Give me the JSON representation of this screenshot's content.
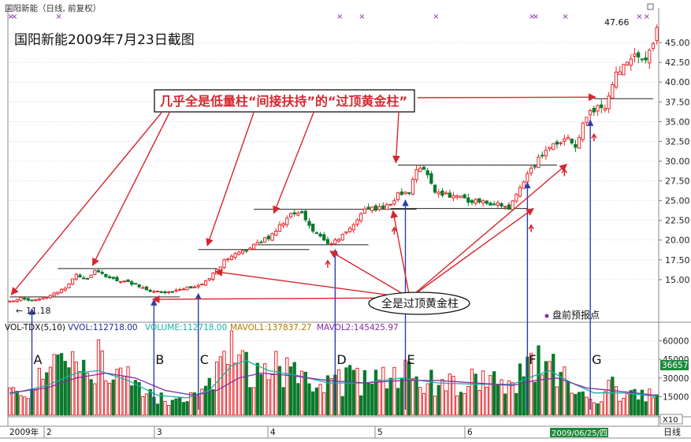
{
  "header": {
    "stock_title": "国阳新能（日线, 前复权）",
    "screenshot_caption": "国阳新能2009年7月23日截图"
  },
  "annotations": {
    "callout_top": "几乎全是低量柱“间接扶持”的“过顶黄金柱”",
    "callout_bottom": "全是过顶黄金柱",
    "legend_dot_label": "盘前预报点",
    "high_label": "47.66",
    "low_label": "11.18",
    "low_arrow": "←",
    "point_letters": [
      "A",
      "B",
      "C",
      "D",
      "E",
      "F",
      "G"
    ]
  },
  "volume_header": {
    "indicator": "VOL-TDX(5,10)",
    "vvol": "VVOL:112718.00",
    "volume": "VOLUME:112718.00",
    "mavol1": "MAVOL1:137837.27",
    "mavol2": "MAVOL2:145425.97",
    "current_badge": "36657",
    "scale_badge": "X10"
  },
  "bottom_bar": {
    "year_label": "2009年",
    "month_ticks": [
      "2",
      "3",
      "4",
      "5",
      "6"
    ],
    "date_badge": "2009/06/25/四",
    "period_label": "日线"
  },
  "colors": {
    "up": "#e8262a",
    "down": "#0b7a2c",
    "ma1": "#19b3a4",
    "ma2": "#8a2aa6",
    "arrow": "#d6262e",
    "blue_line": "#2a3fa8"
  },
  "chart_data": [
    {
      "type": "candlestick",
      "title": "国阳新能（日线, 前复权）",
      "y_ticks": [
        15.0,
        17.5,
        20.0,
        22.5,
        25.0,
        27.5,
        30.0,
        32.5,
        35.0,
        37.5,
        40.0,
        42.5,
        45.0
      ],
      "y_tick_labels": [
        "15.00",
        "17.50",
        "20.00",
        "22.50",
        "25.00",
        "27.50",
        "30.00",
        "32.50",
        "35.00",
        "37.50",
        "40.00",
        "42.50",
        "45.00"
      ],
      "ylim": [
        10.3,
        49.0
      ],
      "x_labels": [
        "2009年",
        "2",
        "3",
        "4",
        "5",
        "6"
      ],
      "close_path": [
        [
          0,
          12.2
        ],
        [
          3,
          12.8
        ],
        [
          6,
          12.3
        ],
        [
          9,
          12.8
        ],
        [
          12,
          13.2
        ],
        [
          15,
          14.0
        ],
        [
          18,
          15.6
        ],
        [
          21,
          15.2
        ],
        [
          23,
          16.0
        ],
        [
          26,
          15.4
        ],
        [
          29,
          14.9
        ],
        [
          32,
          14.8
        ],
        [
          34,
          14.3
        ],
        [
          37,
          13.6
        ],
        [
          40,
          13.4
        ],
        [
          43,
          13.3
        ],
        [
          46,
          13.9
        ],
        [
          49,
          14.1
        ],
        [
          52,
          14.3
        ],
        [
          54,
          15.0
        ],
        [
          56,
          16.3
        ],
        [
          58,
          17.3
        ],
        [
          61,
          18.1
        ],
        [
          64,
          18.8
        ],
        [
          67,
          19.6
        ],
        [
          70,
          20.4
        ],
        [
          73,
          21.8
        ],
        [
          76,
          23.2
        ],
        [
          79,
          23.3
        ],
        [
          81,
          21.8
        ],
        [
          84,
          20.4
        ],
        [
          87,
          19.4
        ],
        [
          90,
          20.6
        ],
        [
          93,
          22.0
        ],
        [
          96,
          24.0
        ],
        [
          99,
          24.0
        ],
        [
          102,
          24.2
        ],
        [
          105,
          25.8
        ],
        [
          108,
          26.2
        ],
        [
          110,
          28.6
        ],
        [
          112,
          29.2
        ],
        [
          115,
          26.2
        ],
        [
          118,
          25.8
        ],
        [
          121,
          25.6
        ],
        [
          124,
          25.0
        ],
        [
          127,
          25.0
        ],
        [
          130,
          24.7
        ],
        [
          133,
          24.4
        ],
        [
          135,
          24.0
        ],
        [
          137,
          25.6
        ],
        [
          139,
          27.6
        ],
        [
          141,
          29.0
        ],
        [
          143,
          30.2
        ],
        [
          145,
          31.6
        ],
        [
          148,
          32.2
        ],
        [
          151,
          32.6
        ],
        [
          153,
          32.0
        ],
        [
          155,
          34.4
        ],
        [
          157,
          36.2
        ],
        [
          159,
          37.0
        ],
        [
          161,
          36.6
        ],
        [
          163,
          40.0
        ],
        [
          166,
          42.6
        ],
        [
          169,
          43.6
        ],
        [
          171,
          42.4
        ],
        [
          173,
          44.2
        ],
        [
          175,
          46.4
        ]
      ],
      "high": 47.66,
      "low": 11.18,
      "support_levels": [
        {
          "from": 0,
          "to": 46,
          "price": 12.8
        },
        {
          "from": 13,
          "to": 56,
          "price": 16.4
        },
        {
          "from": 51,
          "to": 81,
          "price": 18.8
        },
        {
          "from": 67,
          "to": 97,
          "price": 19.4
        },
        {
          "from": 66,
          "to": 110,
          "price": 23.9
        },
        {
          "from": 103,
          "to": 140,
          "price": 24.0
        },
        {
          "from": 105,
          "to": 148,
          "price": 29.5
        },
        {
          "from": 158,
          "to": 174,
          "price": 37.9
        }
      ],
      "point_bars": {
        "A": 6,
        "B": 39,
        "C": 51,
        "D": 88,
        "E": 107,
        "F": 140,
        "G": 157
      },
      "premarket_marks": [
        0,
        1,
        13,
        89,
        95,
        115,
        141,
        142,
        150,
        170,
        172
      ]
    },
    {
      "type": "bar",
      "title": "VOL-TDX(5,10)",
      "y_ticks": [
        15000,
        30000,
        45000,
        60000
      ],
      "y_tick_labels": [
        "15000",
        "30000",
        "45000",
        "60000"
      ],
      "ylim": [
        0,
        68000
      ],
      "series": [
        {
          "name": "VOLUME",
          "values_path": [
            [
              0,
              18000
            ],
            [
              6,
              24000
            ],
            [
              12,
              34000
            ],
            [
              18,
              44000
            ],
            [
              22,
              48000
            ],
            [
              26,
              38000
            ],
            [
              30,
              30000
            ],
            [
              34,
              26000
            ],
            [
              38,
              18000
            ],
            [
              42,
              14000
            ],
            [
              46,
              12000
            ],
            [
              50,
              14000
            ],
            [
              54,
              22000
            ],
            [
              57,
              38000
            ],
            [
              59,
              52000
            ],
            [
              61,
              64000
            ],
            [
              64,
              42000
            ],
            [
              68,
              30000
            ],
            [
              72,
              40000
            ],
            [
              76,
              36000
            ],
            [
              80,
              24000
            ],
            [
              84,
              22000
            ],
            [
              88,
              26000
            ],
            [
              92,
              28000
            ],
            [
              96,
              26000
            ],
            [
              100,
              30000
            ],
            [
              104,
              34000
            ],
            [
              108,
              32000
            ],
            [
              112,
              28000
            ],
            [
              116,
              26000
            ],
            [
              120,
              22000
            ],
            [
              124,
              28000
            ],
            [
              128,
              26000
            ],
            [
              132,
              28000
            ],
            [
              136,
              24000
            ],
            [
              140,
              40000
            ],
            [
              143,
              50000
            ],
            [
              146,
              38000
            ],
            [
              150,
              30000
            ],
            [
              154,
              20000
            ],
            [
              158,
              10000
            ],
            [
              162,
              24000
            ],
            [
              166,
              18000
            ],
            [
              170,
              14000
            ],
            [
              175,
              15000
            ]
          ]
        },
        {
          "name": "MAVOL1",
          "values_path": [
            [
              0,
              17000
            ],
            [
              10,
              24000
            ],
            [
              18,
              34000
            ],
            [
              24,
              36000
            ],
            [
              32,
              28000
            ],
            [
              40,
              16000
            ],
            [
              48,
              14000
            ],
            [
              54,
              20000
            ],
            [
              60,
              40000
            ],
            [
              64,
              44000
            ],
            [
              70,
              36000
            ],
            [
              78,
              32000
            ],
            [
              86,
              26000
            ],
            [
              96,
              26000
            ],
            [
              106,
              30000
            ],
            [
              116,
              26000
            ],
            [
              126,
              25000
            ],
            [
              136,
              25000
            ],
            [
              142,
              32000
            ],
            [
              146,
              36000
            ],
            [
              152,
              26000
            ],
            [
              158,
              18000
            ],
            [
              166,
              18000
            ],
            [
              175,
              15000
            ]
          ]
        },
        {
          "name": "MAVOL2",
          "values_path": [
            [
              0,
              18000
            ],
            [
              10,
              22000
            ],
            [
              18,
              30000
            ],
            [
              26,
              34000
            ],
            [
              34,
              30000
            ],
            [
              42,
              20000
            ],
            [
              50,
              16000
            ],
            [
              56,
              20000
            ],
            [
              62,
              30000
            ],
            [
              68,
              34000
            ],
            [
              76,
              32000
            ],
            [
              86,
              28000
            ],
            [
              96,
              26000
            ],
            [
              106,
              28000
            ],
            [
              116,
              28000
            ],
            [
              126,
              26000
            ],
            [
              136,
              24000
            ],
            [
              142,
              28000
            ],
            [
              148,
              30000
            ],
            [
              156,
              22000
            ],
            [
              166,
              19000
            ],
            [
              175,
              16000
            ]
          ]
        }
      ]
    }
  ]
}
